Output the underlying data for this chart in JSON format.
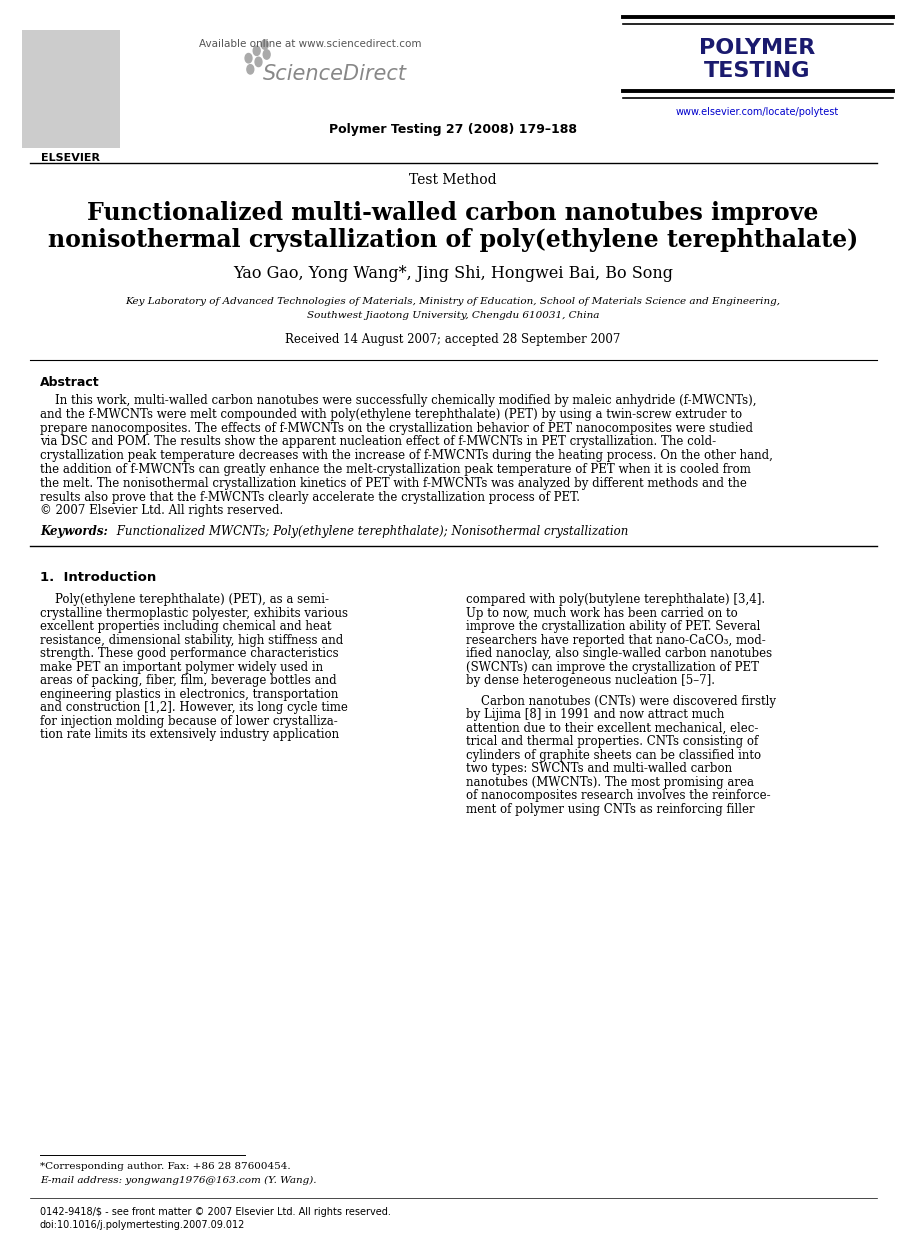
{
  "bg_color": "#ffffff",
  "header_available_text": "Available online at www.sciencedirect.com",
  "journal_ref": "Polymer Testing 27 (2008) 179–188",
  "journal_url": "www.elsevier.com/locate/polytest",
  "journal_name_line1": "POLYMER",
  "journal_name_line2": "TESTING",
  "section_label": "Test Method",
  "title_line1": "Functionalized multi-walled carbon nanotubes improve",
  "title_line2": "nonisothermal crystallization of poly(ethylene terephthalate)",
  "authors": "Yao Gao, Yong Wang*, Jing Shi, Hongwei Bai, Bo Song",
  "affiliation_line1": "Key Laboratory of Advanced Technologies of Materials, Ministry of Education, School of Materials Science and Engineering,",
  "affiliation_line2": "Southwest Jiaotong University, Chengdu 610031, China",
  "received_text": "Received 14 August 2007; accepted 28 September 2007",
  "abstract_label": "Abstract",
  "abstract_lines": [
    "    In this work, multi-walled carbon nanotubes were successfully chemically modified by maleic anhydride (f-MWCNTs),",
    "and the f-MWCNTs were melt compounded with poly(ethylene terephthalate) (PET) by using a twin-screw extruder to",
    "prepare nanocomposites. The effects of f-MWCNTs on the crystallization behavior of PET nanocomposites were studied",
    "via DSC and POM. The results show the apparent nucleation effect of f-MWCNTs in PET crystallization. The cold-",
    "crystallization peak temperature decreases with the increase of f-MWCNTs during the heating process. On the other hand,",
    "the addition of f-MWCNTs can greatly enhance the melt-crystallization peak temperature of PET when it is cooled from",
    "the melt. The nonisothermal crystallization kinetics of PET with f-MWCNTs was analyzed by different methods and the",
    "results also prove that the f-MWCNTs clearly accelerate the crystallization process of PET.",
    "© 2007 Elsevier Ltd. All rights reserved."
  ],
  "keywords_label": "Keywords:",
  "keywords_text": " Functionalized MWCNTs; Poly(ethylene terephthalate); Nonisothermal crystallization",
  "intro_heading": "1.  Introduction",
  "intro_col1": [
    "    Poly(ethylene terephthalate) (PET), as a semi-",
    "crystalline thermoplastic polyester, exhibits various",
    "excellent properties including chemical and heat",
    "resistance, dimensional stability, high stiffness and",
    "strength. These good performance characteristics",
    "make PET an important polymer widely used in",
    "areas of packing, fiber, film, beverage bottles and",
    "engineering plastics in electronics, transportation",
    "and construction [1,2]. However, its long cycle time",
    "for injection molding because of lower crystalliza-",
    "tion rate limits its extensively industry application"
  ],
  "intro_col2_p1": [
    "compared with poly(butylene terephthalate) [3,4].",
    "Up to now, much work has been carried on to",
    "improve the crystallization ability of PET. Several",
    "researchers have reported that nano-CaCO₃, mod-",
    "ified nanoclay, also single-walled carbon nanotubes",
    "(SWCNTs) can improve the crystallization of PET",
    "by dense heterogeneous nucleation [5–7]."
  ],
  "intro_col2_p2": [
    "    Carbon nanotubes (CNTs) were discovered firstly",
    "by Lijima [8] in 1991 and now attract much",
    "attention due to their excellent mechanical, elec-",
    "trical and thermal properties. CNTs consisting of",
    "cylinders of graphite sheets can be classified into",
    "two types: SWCNTs and multi-walled carbon",
    "nanotubes (MWCNTs). The most promising area",
    "of nanocomposites research involves the reinforce-",
    "ment of polymer using CNTs as reinforcing filler"
  ],
  "footnote_star": "*Corresponding author. Fax: +86 28 87600454.",
  "footnote_email": "E-mail address: yongwang1976@163.com (Y. Wang).",
  "footer_left": "0142-9418/$ - see front matter © 2007 Elsevier Ltd. All rights reserved.",
  "footer_doi": "doi:10.1016/j.polymertesting.2007.09.012",
  "science_direct_text": "ScienceDirect",
  "elsevier_label": "ELSEVIER",
  "scidir_dots": [
    [
      0.274,
      0.047
    ],
    [
      0.283,
      0.041
    ],
    [
      0.292,
      0.036
    ],
    [
      0.276,
      0.056
    ],
    [
      0.285,
      0.05
    ],
    [
      0.294,
      0.044
    ]
  ]
}
